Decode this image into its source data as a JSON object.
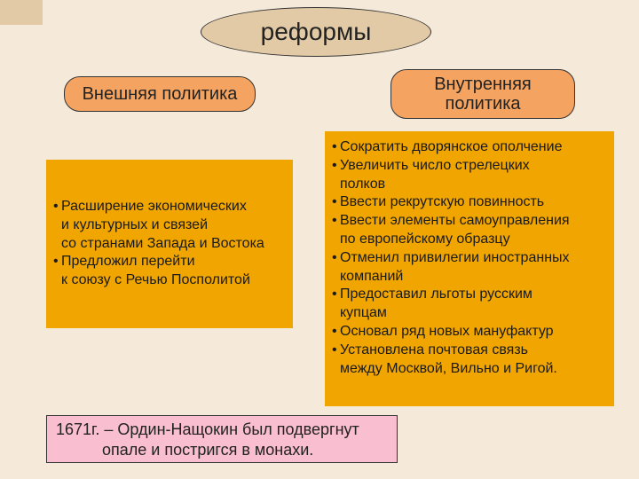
{
  "colors": {
    "background": "#f5e9da",
    "accent": "#e3caa6",
    "sub_oval": "#f4a460",
    "box": "#f0a500",
    "footer": "#f9bed0",
    "border": "#333333",
    "text": "#222222"
  },
  "typography": {
    "title_fontsize": 28,
    "sub_fontsize": 20,
    "body_fontsize": 16,
    "footer_fontsize": 18,
    "font_family": "Arial"
  },
  "title": "реформы",
  "left": {
    "heading": "Внешняя политика",
    "items": [
      {
        "lines": [
          "Расширение экономических",
          "и культурных и связей",
          "со странами Запада и Востока"
        ]
      },
      {
        "lines": [
          "Предложил перейти",
          "к союзу с Речью Посполитой"
        ]
      }
    ]
  },
  "right": {
    "heading": "Внутренняя политика",
    "items": [
      {
        "lines": [
          "Сократить дворянское ополчение"
        ]
      },
      {
        "lines": [
          "Увеличить число стрелецких",
          "полков"
        ]
      },
      {
        "lines": [
          "Ввести рекрутскую повинность"
        ]
      },
      {
        "lines": [
          "Ввести элементы самоуправления",
          "по европейскому образцу"
        ]
      },
      {
        "lines": [
          "Отменил привилегии иностранных",
          "компаний"
        ]
      },
      {
        "lines": [
          "Предоставил льготы русским",
          "купцам"
        ]
      },
      {
        "lines": [
          "Основал ряд новых мануфактур"
        ]
      },
      {
        "lines": [
          "Установлена почтовая связь",
          "между Москвой, Вильно и Ригой."
        ]
      }
    ]
  },
  "footer": {
    "line1": "1671г. – Ордин-Нащокин был подвергнут",
    "line2": "опале и постригся в монахи."
  }
}
